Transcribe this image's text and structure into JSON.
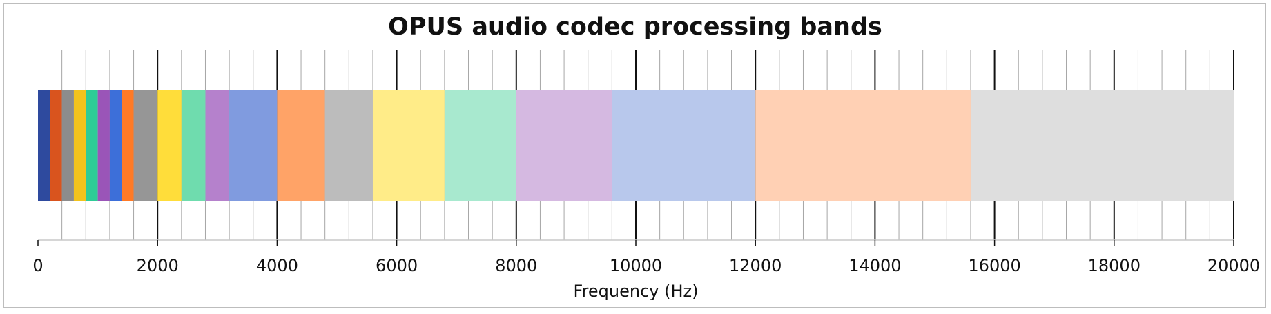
{
  "chart_data": {
    "type": "bar",
    "orientation": "horizontal-stacked",
    "title": "OPUS audio codec processing bands",
    "xlabel": "Frequency (Hz)",
    "ylabel": "",
    "xlim": [
      0,
      20000
    ],
    "x_ticks": [
      0,
      2000,
      4000,
      6000,
      8000,
      10000,
      12000,
      14000,
      16000,
      18000,
      20000
    ],
    "x_tick_labels": [
      "0",
      "2000",
      "4000",
      "6000",
      "8000",
      "10000",
      "12000",
      "14000",
      "16000",
      "18000",
      "20000"
    ],
    "major_grid_step": 2000,
    "minor_grid_step": 400,
    "grid": true,
    "legend": "none",
    "bands": [
      {
        "start": 0,
        "end": 200,
        "color": "#2e4a9e"
      },
      {
        "start": 200,
        "end": 400,
        "color": "#d9541e"
      },
      {
        "start": 400,
        "end": 600,
        "color": "#8c8c8c"
      },
      {
        "start": 600,
        "end": 800,
        "color": "#f2c31c"
      },
      {
        "start": 800,
        "end": 1000,
        "color": "#2ecc96"
      },
      {
        "start": 1000,
        "end": 1200,
        "color": "#9a55b8"
      },
      {
        "start": 1200,
        "end": 1400,
        "color": "#3d6fd9"
      },
      {
        "start": 1400,
        "end": 1600,
        "color": "#ff7a26"
      },
      {
        "start": 1600,
        "end": 2000,
        "color": "#969696"
      },
      {
        "start": 2000,
        "end": 2400,
        "color": "#ffdd3a"
      },
      {
        "start": 2400,
        "end": 2800,
        "color": "#6fdcae"
      },
      {
        "start": 2800,
        "end": 3200,
        "color": "#b581cc"
      },
      {
        "start": 3200,
        "end": 4000,
        "color": "#809bdf"
      },
      {
        "start": 4000,
        "end": 4800,
        "color": "#ffa367"
      },
      {
        "start": 4800,
        "end": 5600,
        "color": "#bcbcbc"
      },
      {
        "start": 5600,
        "end": 6800,
        "color": "#ffec88"
      },
      {
        "start": 6800,
        "end": 8000,
        "color": "#a8e9cf"
      },
      {
        "start": 8000,
        "end": 9600,
        "color": "#d5b9e1"
      },
      {
        "start": 9600,
        "end": 12000,
        "color": "#b8c8ec"
      },
      {
        "start": 12000,
        "end": 15600,
        "color": "#ffd0b4"
      },
      {
        "start": 15600,
        "end": 20000,
        "color": "#dedede"
      }
    ]
  }
}
